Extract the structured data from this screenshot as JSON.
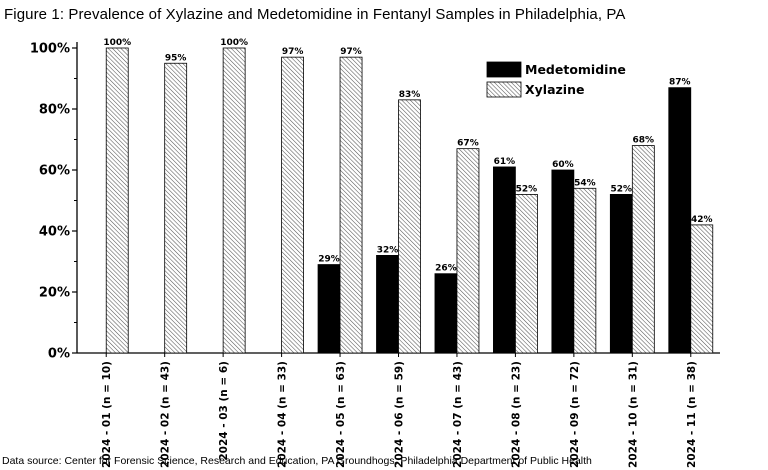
{
  "title": "Figure 1: Prevalence of Xylazine and Medetomidine in Fentanyl Samples in Philadelphia, PA",
  "source": "Data source: Center for Forensic Science, Research and Education, PA Groundhogs, Philadelphia Department of Public Health",
  "chart_data": {
    "type": "bar",
    "categories": [
      "2024 - 01 (n = 10)",
      "2024 - 02 (n = 43)",
      "2024 - 03 (n = 6)",
      "2024 - 04 (n = 33)",
      "2024 - 05 (n = 63)",
      "2024 - 06 (n = 59)",
      "2024 - 07 (n = 43)",
      "2024 - 08 (n = 23)",
      "2024 - 09 (n = 72)",
      "2024 - 10 (n = 31)",
      "2024 - 11 (n = 38)"
    ],
    "series": [
      {
        "name": "Medetomidine",
        "values": [
          null,
          null,
          null,
          null,
          29,
          32,
          26,
          61,
          60,
          52,
          87
        ],
        "labels": [
          "",
          "",
          "",
          "",
          "29%",
          "32%",
          "26%",
          "61%",
          "60%",
          "52%",
          "87%"
        ],
        "fill": "solid-black"
      },
      {
        "name": "Xylazine",
        "values": [
          100,
          95,
          100,
          97,
          97,
          83,
          67,
          52,
          54,
          68,
          42
        ],
        "labels": [
          "100%",
          "95%",
          "100%",
          "97%",
          "97%",
          "83%",
          "67%",
          "52%",
          "54%",
          "68%",
          "42%"
        ],
        "fill": "diagonal-hatch"
      }
    ],
    "yticks": [
      "0%",
      "20%",
      "40%",
      "60%",
      "80%",
      "100%"
    ],
    "ylim": [
      0,
      100
    ],
    "legend_position": "top-right",
    "grid": false,
    "colors": {
      "medetomidine": "#000000",
      "xylazine_hatch": "#555555",
      "axis": "#000000"
    }
  }
}
